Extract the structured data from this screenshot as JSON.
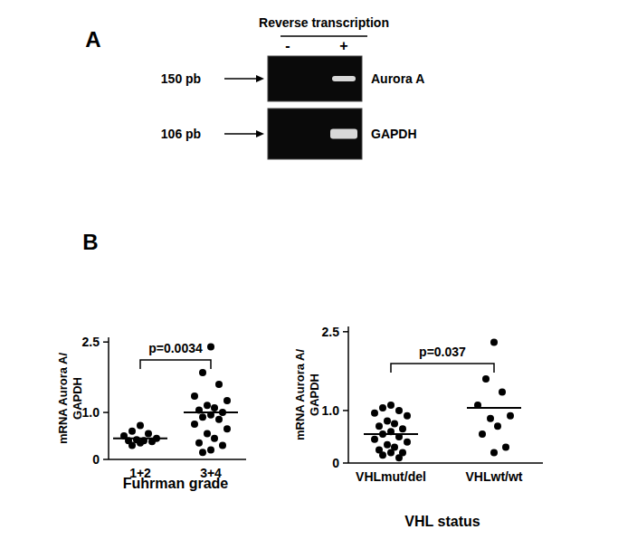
{
  "panel_a": {
    "label": "A",
    "header": "Reverse transcription",
    "lanes": [
      "-",
      "+"
    ],
    "bands": [
      {
        "size": "150 pb",
        "name": "Aurora A"
      },
      {
        "size": "106 pb",
        "name": "GAPDH"
      }
    ]
  },
  "panel_b": {
    "label": "B"
  },
  "chart_data": [
    {
      "type": "scatter",
      "xlabel": "Fuhrman grade",
      "ylabel": "mRNA Aurora A/\nGAPDH",
      "annotation": "p=0.0034",
      "categories": [
        "1+2",
        "3+4"
      ],
      "values": [
        [
          0.72,
          0.6,
          0.55,
          0.5,
          0.45,
          0.42,
          0.4,
          0.4,
          0.38,
          0.35,
          0.3
        ],
        [
          2.4,
          1.85,
          1.6,
          1.35,
          1.25,
          1.15,
          1.1,
          1.05,
          1.0,
          0.95,
          0.9,
          0.85,
          0.75,
          0.65,
          0.55,
          0.45,
          0.35,
          0.3,
          0.2,
          0.15
        ]
      ],
      "means": [
        0.45,
        1.0
      ],
      "color": "#000000",
      "ylim": [
        0,
        2.6
      ],
      "yticks": [
        0,
        {
          "value": 1,
          "label": "1.0"
        },
        {
          "value": 2.5,
          "label": "2.5"
        }
      ]
    },
    {
      "type": "scatter",
      "xlabel": "VHL status",
      "ylabel": "mRNA Aurora A/\nGAPDH",
      "annotation": "p=0.037",
      "categories": [
        "VHLmut/del",
        "VHLwt/wt"
      ],
      "values": [
        [
          1.1,
          1.05,
          1.0,
          0.95,
          0.9,
          0.8,
          0.75,
          0.7,
          0.65,
          0.6,
          0.55,
          0.5,
          0.45,
          0.4,
          0.35,
          0.3,
          0.25,
          0.2,
          0.2,
          0.15,
          0.1
        ],
        [
          2.3,
          1.6,
          1.35,
          1.1,
          0.9,
          0.85,
          0.7,
          0.55,
          0.3,
          0.2
        ]
      ],
      "means": [
        0.55,
        1.05
      ],
      "color": "#000000",
      "ylim": [
        0,
        2.6
      ],
      "yticks": [
        0,
        {
          "value": 1,
          "label": "1.0"
        },
        {
          "value": 2.5,
          "label": "2.5"
        }
      ]
    }
  ]
}
